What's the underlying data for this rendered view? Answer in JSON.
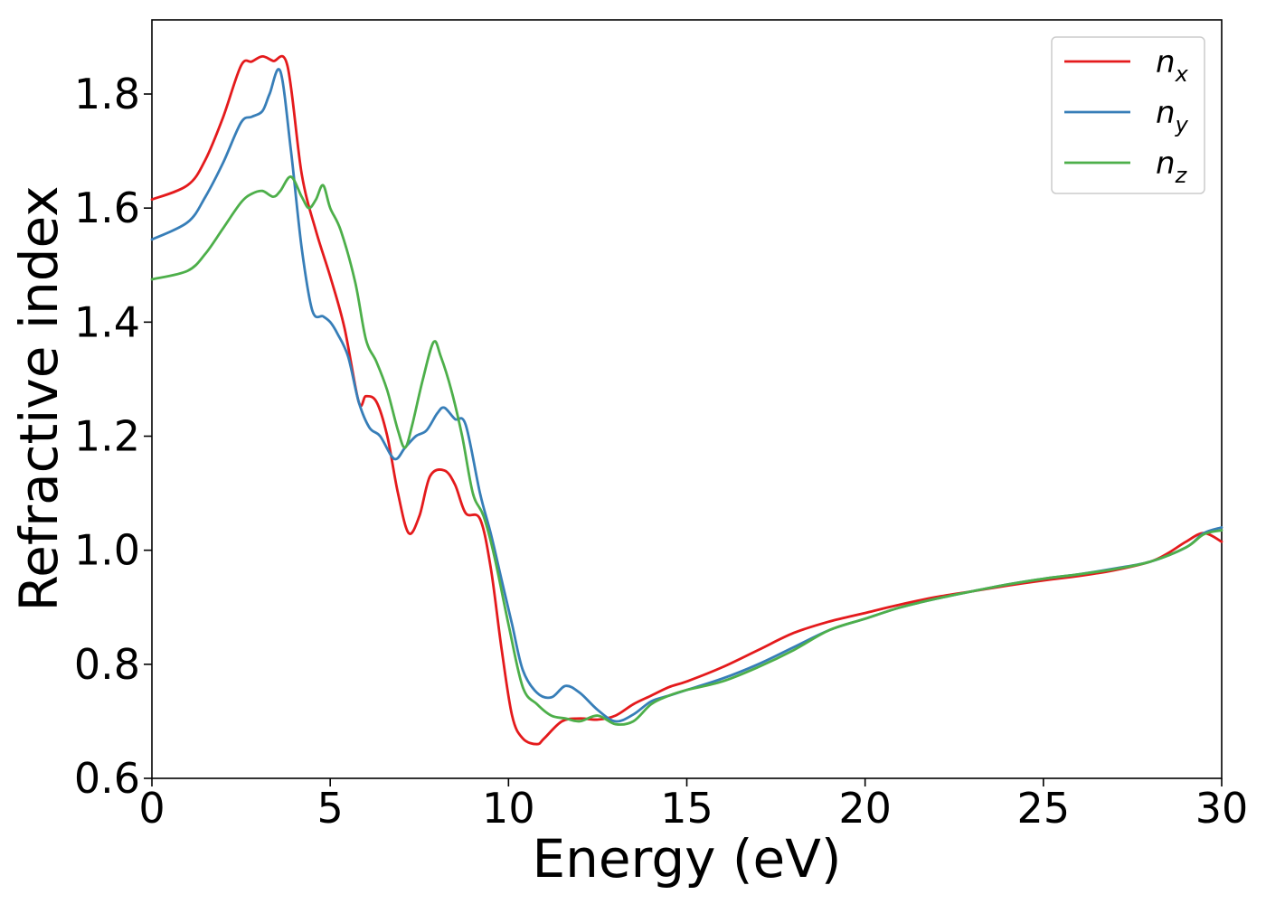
{
  "chart_data": {
    "type": "line",
    "xlabel": "Energy (eV)",
    "ylabel": "Refractive index",
    "xlim": [
      0,
      30
    ],
    "ylim": [
      0.6,
      1.93
    ],
    "xticks": [
      "0",
      "5",
      "10",
      "15",
      "20",
      "25",
      "30"
    ],
    "yticks": [
      "0.6",
      "0.8",
      "1.0",
      "1.2",
      "1.4",
      "1.6",
      "1.8"
    ],
    "grid": false,
    "legend_position": "top-right",
    "series": [
      {
        "name": "n_x",
        "legend_base": "n",
        "legend_sub": "x",
        "color": "#e41a1c",
        "x": [
          0,
          1,
          1.5,
          2,
          2.5,
          2.8,
          3.1,
          3.4,
          3.8,
          4.2,
          4.6,
          5,
          5.4,
          5.8,
          6,
          6.3,
          6.6,
          6.9,
          7.2,
          7.5,
          7.8,
          8.2,
          8.5,
          8.8,
          9.2,
          9.5,
          9.8,
          10.1,
          10.4,
          10.8,
          11,
          11.5,
          12,
          12.5,
          13,
          13.5,
          14,
          14.5,
          15,
          16,
          17,
          18,
          19,
          20,
          21,
          22,
          23,
          24,
          25,
          26,
          27,
          28,
          28.5,
          29,
          29.5,
          30
        ],
        "y": [
          1.615,
          1.64,
          1.685,
          1.76,
          1.85,
          1.857,
          1.866,
          1.858,
          1.85,
          1.66,
          1.56,
          1.48,
          1.39,
          1.26,
          1.27,
          1.26,
          1.2,
          1.1,
          1.03,
          1.06,
          1.13,
          1.14,
          1.115,
          1.065,
          1.055,
          0.97,
          0.83,
          0.71,
          0.67,
          0.66,
          0.67,
          0.7,
          0.705,
          0.703,
          0.71,
          0.73,
          0.745,
          0.76,
          0.77,
          0.795,
          0.825,
          0.855,
          0.875,
          0.89,
          0.905,
          0.918,
          0.928,
          0.938,
          0.947,
          0.955,
          0.965,
          0.98,
          0.995,
          1.015,
          1.03,
          1.015
        ]
      },
      {
        "name": "n_y",
        "legend_base": "n",
        "legend_sub": "y",
        "color": "#377eb8",
        "x": [
          0,
          1,
          1.5,
          2,
          2.5,
          2.8,
          3.1,
          3.3,
          3.6,
          3.9,
          4.2,
          4.5,
          4.8,
          5,
          5.2,
          5.5,
          5.8,
          6.1,
          6.4,
          6.8,
          7.1,
          7.4,
          7.7,
          8,
          8.2,
          8.5,
          8.8,
          9.2,
          9.5,
          9.8,
          10.1,
          10.4,
          10.8,
          11.2,
          11.6,
          12,
          12.5,
          13,
          13.5,
          14,
          14.5,
          15,
          16,
          17,
          18,
          19,
          20,
          21,
          22,
          23,
          24,
          25,
          26,
          27,
          28,
          29,
          29.5,
          30
        ],
        "y": [
          1.545,
          1.575,
          1.62,
          1.68,
          1.75,
          1.76,
          1.77,
          1.8,
          1.84,
          1.7,
          1.53,
          1.42,
          1.41,
          1.4,
          1.38,
          1.34,
          1.26,
          1.215,
          1.2,
          1.16,
          1.18,
          1.2,
          1.21,
          1.24,
          1.25,
          1.23,
          1.22,
          1.1,
          1.03,
          0.95,
          0.87,
          0.79,
          0.75,
          0.742,
          0.762,
          0.75,
          0.72,
          0.7,
          0.712,
          0.735,
          0.745,
          0.755,
          0.775,
          0.8,
          0.83,
          0.86,
          0.88,
          0.9,
          0.915,
          0.928,
          0.94,
          0.95,
          0.958,
          0.968,
          0.98,
          1.005,
          1.03,
          1.04
        ]
      },
      {
        "name": "n_z",
        "legend_base": "n",
        "legend_sub": "z",
        "color": "#4daf4a",
        "x": [
          0,
          1,
          1.5,
          2,
          2.5,
          2.8,
          3.1,
          3.4,
          3.6,
          3.9,
          4.2,
          4.4,
          4.6,
          4.8,
          5,
          5.3,
          5.7,
          6,
          6.3,
          6.6,
          6.9,
          7.1,
          7.3,
          7.6,
          7.9,
          8.1,
          8.4,
          8.7,
          9,
          9.3,
          9.6,
          10,
          10.4,
          10.8,
          11.2,
          11.6,
          12,
          12.5,
          13,
          13.5,
          14,
          14.5,
          15,
          16,
          17,
          18,
          19,
          20,
          21,
          22,
          23,
          24,
          25,
          26,
          27,
          28,
          29,
          29.5,
          30
        ],
        "y": [
          1.475,
          1.49,
          1.52,
          1.565,
          1.61,
          1.625,
          1.63,
          1.62,
          1.63,
          1.655,
          1.62,
          1.6,
          1.615,
          1.64,
          1.6,
          1.56,
          1.47,
          1.37,
          1.33,
          1.28,
          1.21,
          1.18,
          1.22,
          1.3,
          1.365,
          1.34,
          1.28,
          1.2,
          1.1,
          1.06,
          0.99,
          0.87,
          0.76,
          0.73,
          0.71,
          0.705,
          0.7,
          0.71,
          0.695,
          0.7,
          0.73,
          0.745,
          0.755,
          0.77,
          0.795,
          0.825,
          0.86,
          0.88,
          0.9,
          0.915,
          0.928,
          0.94,
          0.95,
          0.958,
          0.967,
          0.98,
          1.005,
          1.028,
          1.035
        ]
      }
    ]
  }
}
